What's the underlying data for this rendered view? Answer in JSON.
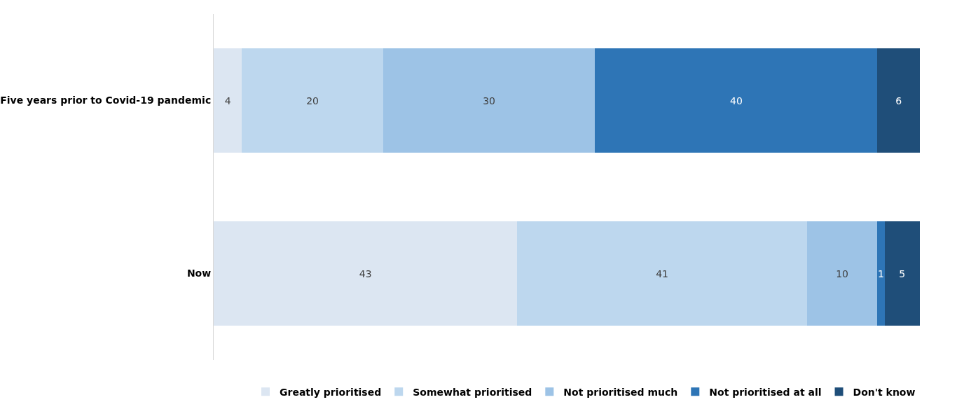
{
  "chart_data": {
    "type": "bar",
    "orientation": "horizontal",
    "stacked": true,
    "data_labels": true,
    "legend": "bottom",
    "grid": false,
    "categories": [
      "Five years prior to Covid-19 pandemic",
      "Now"
    ],
    "series": [
      {
        "name": "Greatly prioritised",
        "color": "#dce6f2",
        "values": [
          4,
          43
        ]
      },
      {
        "name": "Somewhat prioritised",
        "color": "#bdd7ee",
        "values": [
          20,
          41
        ]
      },
      {
        "name": "Not prioritised much",
        "color": "#9dc3e6",
        "values": [
          30,
          10
        ]
      },
      {
        "name": "Not prioritised at all",
        "color": "#2e75b6",
        "values": [
          40,
          1
        ]
      },
      {
        "name": "Don't know",
        "color": "#1f4e79",
        "values": [
          6,
          5
        ]
      }
    ]
  }
}
